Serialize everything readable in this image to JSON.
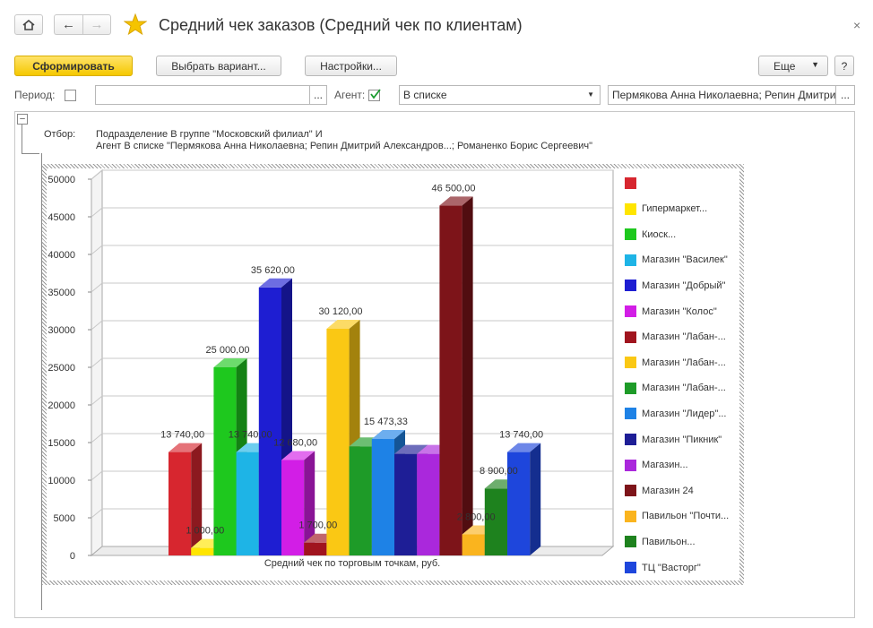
{
  "header": {
    "title": "Средний чек заказов (Средний чек по клиентам)",
    "close": "×"
  },
  "toolbar": {
    "generate": "Сформировать",
    "choose_variant": "Выбрать вариант...",
    "settings": "Настройки...",
    "more": "Еще",
    "help": "?"
  },
  "filters": {
    "period_label": "Период:",
    "period_value": "",
    "period_btn": "...",
    "agent_label": "Агент:",
    "agent_checked": true,
    "agent_mode": "В списке",
    "agent_value": "Пермякова Анна Николаевна; Репин Дмитрий",
    "agent_btn": "..."
  },
  "report": {
    "filter_label": "Отбор:",
    "filter_line1": "Подразделение В группе \"Московский филиал\" И",
    "filter_line2": "Агент В списке \"Пермякова Анна Николаевна; Репин Дмитрий Александров...; Романенко Борис Сергеевич\""
  },
  "chart_data": {
    "type": "bar",
    "xlabel": "Средний чек по торговым точкам, руб.",
    "ylim": [
      0,
      50000
    ],
    "y_ticks": [
      "0",
      "5000",
      "10000",
      "15000",
      "20000",
      "25000",
      "30000",
      "35000",
      "40000",
      "45000",
      "50000"
    ],
    "grid": true,
    "legend_position": "right",
    "series": [
      {
        "name": "",
        "value": 13740,
        "label": "13 740,00",
        "color": "#d7262f"
      },
      {
        "name": "Гипермаркет...",
        "value": 1000,
        "label": "1 000,00",
        "color": "#ffe500"
      },
      {
        "name": "Киоск...",
        "value": 25000,
        "label": "25 000,00",
        "color": "#1ec81e"
      },
      {
        "name": "Магазин \"Василек\"",
        "value": 13740,
        "label": "13 740,00",
        "color": "#1eb4e6"
      },
      {
        "name": "Магазин \"Добрый\"",
        "value": 35620,
        "label": "35 620,00",
        "color": "#1e1ed2"
      },
      {
        "name": "Магазин \"Колос\"",
        "value": 12680,
        "label": "12 680,00",
        "color": "#d21ee6"
      },
      {
        "name": "Магазин  \"Лабан-...",
        "value": 1700,
        "label": "1 700,00",
        "color": "#a0141e"
      },
      {
        "name": "Магазин  \"Лабан-...",
        "value": 30120,
        "label": "30 120,00",
        "color": "#fac814"
      },
      {
        "name": "Магазин  \"Лабан-...",
        "value": 14500,
        "label": "",
        "color": "#1e9b28"
      },
      {
        "name": "Магазин  \"Лидер\"...",
        "value": 15473.33,
        "label": "15 473,33",
        "color": "#1e82e6"
      },
      {
        "name": "Магазин \"Пикник\"",
        "value": 13500,
        "label": "",
        "color": "#1e1e96"
      },
      {
        "name": "Магазин...",
        "value": 13500,
        "label": "",
        "color": "#aa28dc"
      },
      {
        "name": "Магазин 24",
        "value": 46500,
        "label": "46 500,00",
        "color": "#7d1419"
      },
      {
        "name": "Павильон  \"Почти...",
        "value": 2800,
        "label": "2 800,00",
        "color": "#fab41e"
      },
      {
        "name": "Павильон...",
        "value": 8900,
        "label": "8 900,00",
        "color": "#1e821e"
      },
      {
        "name": "ТЦ \"Васторг\"",
        "value": 13740,
        "label": "13 740,00",
        "color": "#1e46dc"
      }
    ]
  }
}
